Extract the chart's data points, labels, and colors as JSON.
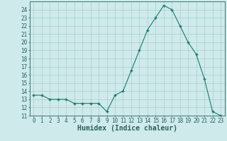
{
  "x": [
    0,
    1,
    2,
    3,
    4,
    5,
    6,
    7,
    8,
    9,
    10,
    11,
    12,
    13,
    14,
    15,
    16,
    17,
    18,
    19,
    20,
    21,
    22,
    23
  ],
  "y": [
    13.5,
    13.5,
    13.0,
    13.0,
    13.0,
    12.5,
    12.5,
    12.5,
    12.5,
    11.5,
    13.5,
    14.0,
    16.5,
    19.0,
    21.5,
    23.0,
    24.5,
    24.0,
    22.0,
    20.0,
    18.5,
    15.5,
    11.5,
    11.0
  ],
  "line_color": "#1a7a6e",
  "marker": "+",
  "marker_size": 3,
  "marker_lw": 1.0,
  "bg_color": "#ceeaea",
  "grid_color": "#aacece",
  "xlabel": "Humidex (Indice chaleur)",
  "xlim": [
    -0.5,
    23.5
  ],
  "ylim": [
    11,
    25
  ],
  "yticks": [
    11,
    12,
    13,
    14,
    15,
    16,
    17,
    18,
    19,
    20,
    21,
    22,
    23,
    24
  ],
  "xticks": [
    0,
    1,
    2,
    3,
    4,
    5,
    6,
    7,
    8,
    9,
    10,
    11,
    12,
    13,
    14,
    15,
    16,
    17,
    18,
    19,
    20,
    21,
    22,
    23
  ],
  "tick_fontsize": 5.5,
  "xlabel_fontsize": 7.0,
  "axis_color": "#2a6060",
  "line_width": 0.8
}
